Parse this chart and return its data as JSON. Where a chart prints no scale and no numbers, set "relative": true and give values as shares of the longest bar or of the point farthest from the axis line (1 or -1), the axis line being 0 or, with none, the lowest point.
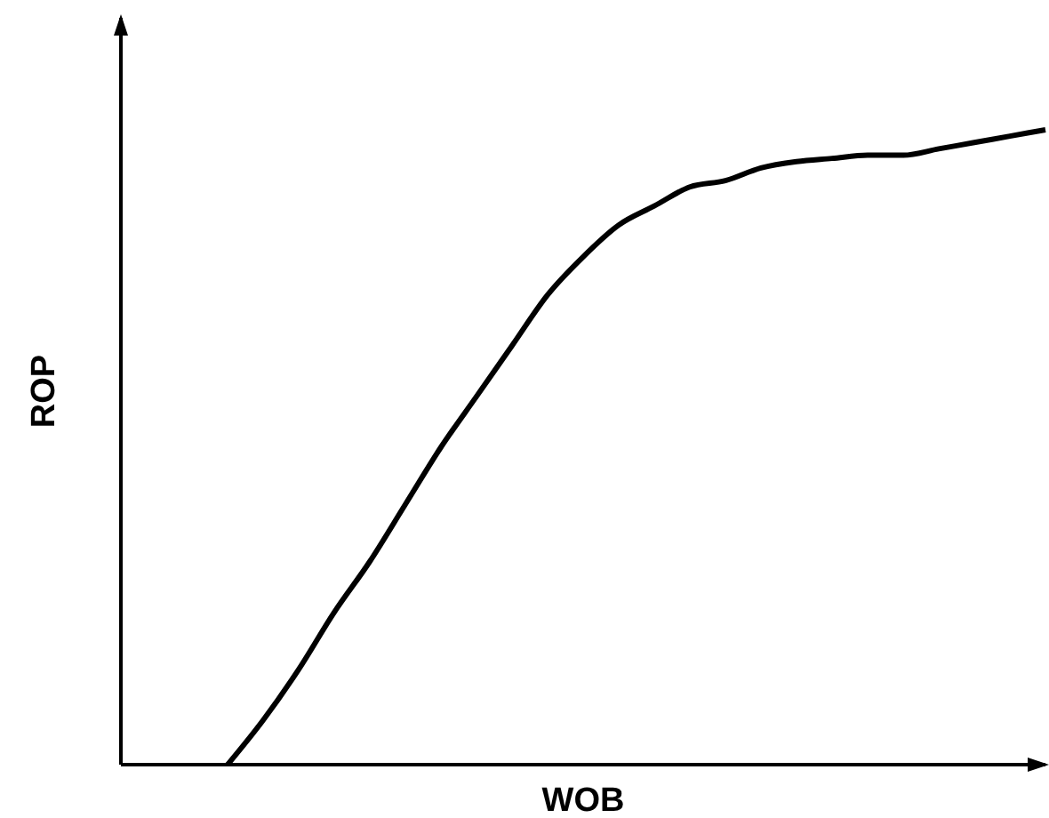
{
  "chart_data": {
    "type": "line",
    "relative": true,
    "xlabel": "WOB",
    "ylabel": "ROP",
    "categories": [
      null,
      null,
      null,
      null,
      null,
      null,
      null,
      null,
      null,
      null,
      null,
      null,
      null,
      null,
      null,
      null,
      null,
      null,
      null,
      null,
      null,
      null,
      null,
      null,
      null,
      null,
      null
    ],
    "series": [
      {
        "color": "#000000",
        "values": [
          null,
          null,
          null,
          0,
          0.07,
          0.15,
          0.24,
          0.32,
          0.41,
          0.5,
          0.58,
          0.66,
          0.74,
          0.8,
          0.85,
          0.88,
          0.91,
          0.92,
          0.94,
          0.95,
          0.955,
          0.96,
          0.96,
          0.97,
          0.98,
          0.99,
          1
        ]
      }
    ],
    "grid": false,
    "legend": false,
    "marker": "none",
    "line_style": "solid"
  }
}
